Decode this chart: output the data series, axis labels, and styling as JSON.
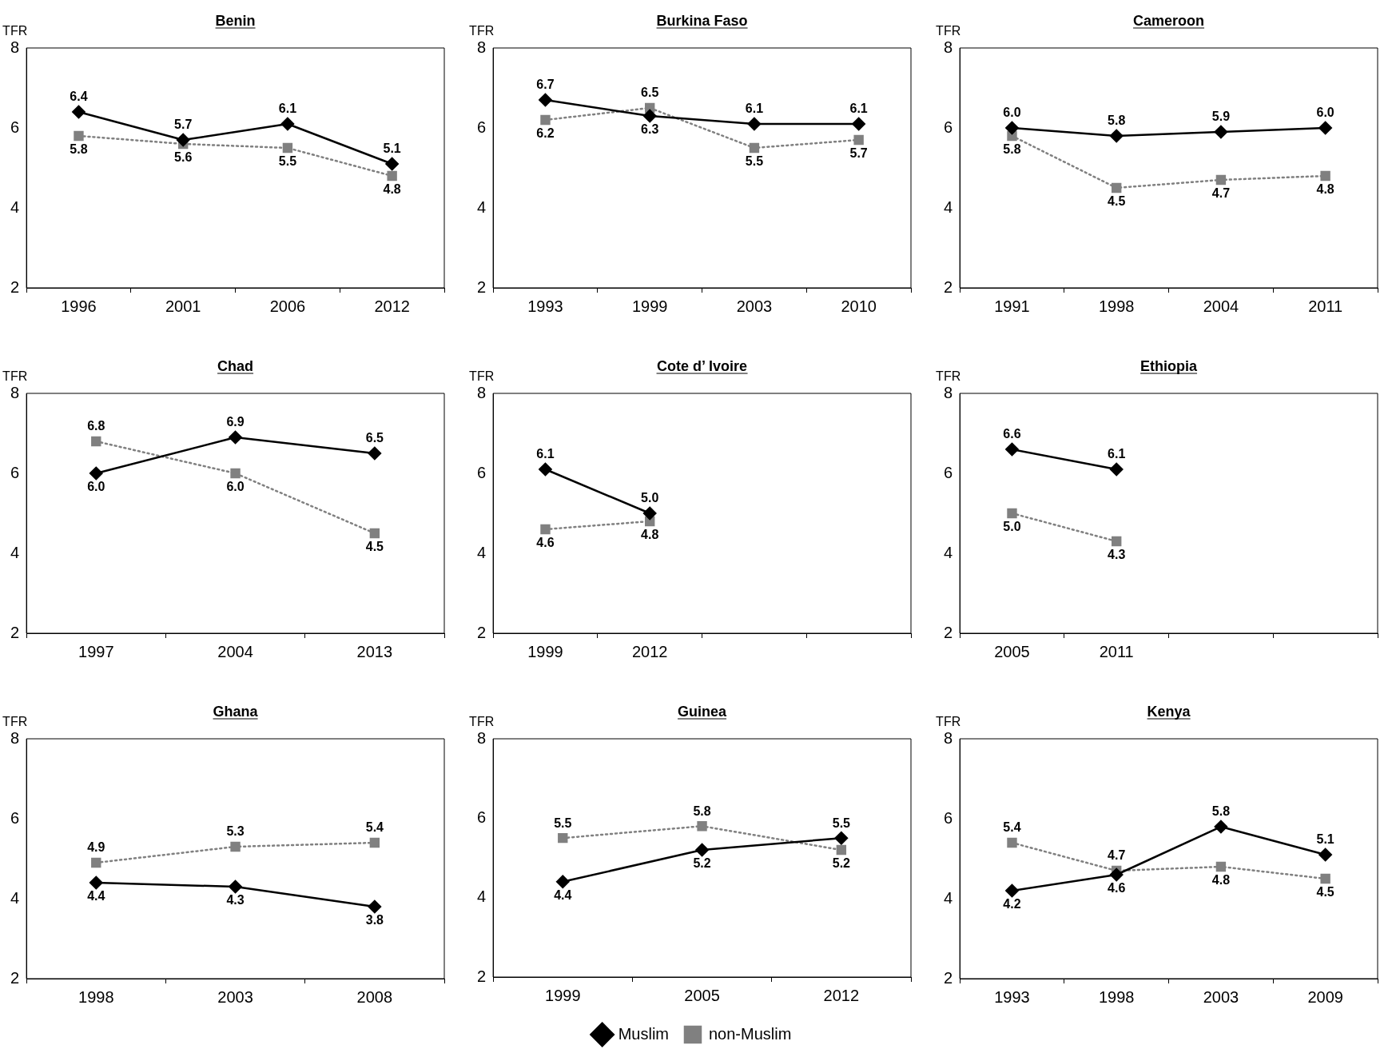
{
  "chart_data": [
    {
      "type": "line",
      "title": "Benin",
      "ylabel": "TFR",
      "categories": [
        "1996",
        "2001",
        "2006",
        "2012"
      ],
      "ylim": [
        2,
        8
      ],
      "yticks": [
        2,
        4,
        6,
        8
      ],
      "series": [
        {
          "color": "#000000",
          "marker": "diamond",
          "line_style": "solid",
          "values": [
            6.4,
            5.7,
            6.1,
            5.1
          ],
          "value_labels": [
            "6.4",
            "5.7",
            "6.1",
            "5.1"
          ]
        },
        {
          "color": "#808080",
          "marker": "square",
          "line_style": "dotted",
          "values": [
            5.8,
            5.6,
            5.5,
            4.8
          ],
          "value_labels": [
            "5.8",
            "5.6",
            "5.5",
            "4.8"
          ]
        }
      ]
    },
    {
      "type": "line",
      "title": "Burkina Faso",
      "ylabel": "TFR",
      "categories": [
        "1993",
        "1999",
        "2003",
        "2010"
      ],
      "ylim": [
        2,
        8
      ],
      "yticks": [
        2,
        4,
        6,
        8
      ],
      "series": [
        {
          "color": "#000000",
          "marker": "diamond",
          "line_style": "solid",
          "values": [
            6.7,
            6.3,
            6.1,
            6.1
          ],
          "value_labels": [
            "6.7",
            "6.3",
            "6.1",
            "6.1"
          ]
        },
        {
          "color": "#808080",
          "marker": "square",
          "line_style": "dotted",
          "values": [
            6.2,
            6.5,
            5.5,
            5.7
          ],
          "value_labels": [
            "6.2",
            "6.5",
            "5.5",
            "5.7"
          ]
        }
      ]
    },
    {
      "type": "line",
      "title": "Cameroon",
      "ylabel": "TFR",
      "categories": [
        "1991",
        "1998",
        "2004",
        "2011"
      ],
      "ylim": [
        2,
        8
      ],
      "yticks": [
        2,
        4,
        6,
        8
      ],
      "series": [
        {
          "color": "#000000",
          "marker": "diamond",
          "line_style": "solid",
          "values": [
            6.0,
            5.8,
            5.9,
            6.0
          ],
          "value_labels": [
            "6.0",
            "5.8",
            "5.9",
            "6.0"
          ]
        },
        {
          "color": "#808080",
          "marker": "square",
          "line_style": "dotted",
          "values": [
            5.8,
            4.5,
            4.7,
            4.8
          ],
          "value_labels": [
            "5.8",
            "4.5",
            "4.7",
            "4.8"
          ]
        }
      ]
    },
    {
      "type": "line",
      "title": "Chad",
      "ylabel": "TFR",
      "categories": [
        "1997",
        "2004",
        "2013"
      ],
      "ylim": [
        2,
        8
      ],
      "yticks": [
        2,
        4,
        6,
        8
      ],
      "series": [
        {
          "color": "#000000",
          "marker": "diamond",
          "line_style": "solid",
          "values": [
            6.0,
            6.9,
            6.5
          ],
          "value_labels": [
            "6.0",
            "6.9",
            "6.5"
          ]
        },
        {
          "color": "#808080",
          "marker": "square",
          "line_style": "dotted",
          "values": [
            6.8,
            6.0,
            4.5
          ],
          "value_labels": [
            "6.8",
            "6.0",
            "4.5"
          ]
        }
      ]
    },
    {
      "type": "line",
      "title": "Cote d’ Ivoire",
      "ylabel": "TFR",
      "categories": [
        "1999",
        "2012",
        null,
        null
      ],
      "ylim": [
        2,
        8
      ],
      "yticks": [
        2,
        4,
        6,
        8
      ],
      "series": [
        {
          "color": "#000000",
          "marker": "diamond",
          "line_style": "solid",
          "values": [
            6.1,
            5.0,
            null,
            null
          ],
          "value_labels": [
            "6.1",
            "5.0",
            null,
            null
          ]
        },
        {
          "color": "#808080",
          "marker": "square",
          "line_style": "dotted",
          "values": [
            4.6,
            4.8,
            null,
            null
          ],
          "value_labels": [
            "4.6",
            "4.8",
            null,
            null
          ]
        }
      ]
    },
    {
      "type": "line",
      "title": "Ethiopia",
      "ylabel": "TFR",
      "categories": [
        "2005",
        "2011",
        null,
        null
      ],
      "ylim": [
        2,
        8
      ],
      "yticks": [
        2,
        4,
        6,
        8
      ],
      "series": [
        {
          "color": "#000000",
          "marker": "diamond",
          "line_style": "solid",
          "values": [
            6.6,
            6.1,
            null,
            null
          ],
          "value_labels": [
            "6.6",
            "6.1",
            null,
            null
          ]
        },
        {
          "color": "#808080",
          "marker": "square",
          "line_style": "dotted",
          "values": [
            5.0,
            4.3,
            null,
            null
          ],
          "value_labels": [
            "5.0",
            "4.3",
            null,
            null
          ]
        }
      ]
    },
    {
      "type": "line",
      "title": "Ghana",
      "ylabel": "TFR",
      "categories": [
        "1998",
        "2003",
        "2008"
      ],
      "ylim": [
        2,
        8
      ],
      "yticks": [
        2,
        4,
        6,
        8
      ],
      "series": [
        {
          "color": "#000000",
          "marker": "diamond",
          "line_style": "solid",
          "values": [
            4.4,
            4.3,
            3.8
          ],
          "value_labels": [
            "4.4",
            "4.3",
            "3.8"
          ]
        },
        {
          "color": "#808080",
          "marker": "square",
          "line_style": "dotted",
          "values": [
            4.9,
            5.3,
            5.4
          ],
          "value_labels": [
            "4.9",
            "5.3",
            "5.4"
          ]
        }
      ]
    },
    {
      "type": "line",
      "title": "Guinea",
      "ylabel": "TFR",
      "categories": [
        "1999",
        "2005",
        "2012"
      ],
      "ylim": [
        2,
        8
      ],
      "yticks": [
        2,
        4,
        6,
        8
      ],
      "legend": "bottom",
      "series": [
        {
          "name": "Muslim",
          "color": "#000000",
          "marker": "diamond",
          "line_style": "solid",
          "values": [
            4.4,
            5.2,
            5.5
          ],
          "value_labels": [
            "4.4",
            "5.2",
            "5.5"
          ]
        },
        {
          "name": "non-Muslim",
          "color": "#808080",
          "marker": "square",
          "line_style": "dotted",
          "values": [
            5.5,
            5.8,
            5.2
          ],
          "value_labels": [
            "5.5",
            "5.8",
            "5.2"
          ]
        }
      ]
    },
    {
      "type": "line",
      "title": "Kenya",
      "ylabel": "TFR",
      "categories": [
        "1993",
        "1998",
        "2003",
        "2009"
      ],
      "ylim": [
        2,
        8
      ],
      "yticks": [
        2,
        4,
        6,
        8
      ],
      "series": [
        {
          "color": "#000000",
          "marker": "diamond",
          "line_style": "solid",
          "values": [
            4.2,
            4.6,
            5.8,
            5.1
          ],
          "value_labels": [
            "4.2",
            "4.6",
            "5.8",
            "5.1"
          ]
        },
        {
          "color": "#808080",
          "marker": "square",
          "line_style": "dotted",
          "values": [
            5.4,
            4.7,
            4.8,
            4.5
          ],
          "value_labels": [
            "5.4",
            "4.7",
            "4.8",
            "4.5"
          ]
        }
      ]
    }
  ]
}
